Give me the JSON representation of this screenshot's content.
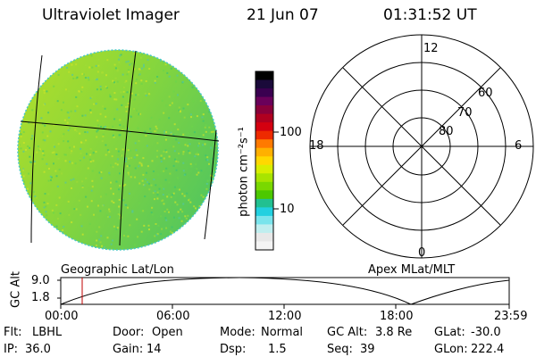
{
  "header": {
    "title": "Ultraviolet Imager",
    "date": "21 Jun 07",
    "time": "01:31:52 UT"
  },
  "colorbar": {
    "label": "photon cm⁻²s⁻¹",
    "ticks": [
      "100",
      "10"
    ],
    "colors": [
      "#000000",
      "#1a0a3a",
      "#3a0050",
      "#6a005a",
      "#8a003a",
      "#b00020",
      "#d40010",
      "#ee2a00",
      "#ff7a00",
      "#ffb000",
      "#ffd800",
      "#d8ee00",
      "#a8e400",
      "#7ad800",
      "#4cc800",
      "#22c090",
      "#22d0e0",
      "#7ae4ec",
      "#c0eeef",
      "#e8e8e8",
      "#f4f4f4"
    ]
  },
  "polar_plot": {
    "mlt_labels": {
      "top": "12",
      "left": "18",
      "right": "6",
      "bottom": "0"
    },
    "lat_labels": [
      "60",
      "70",
      "80"
    ]
  },
  "timeline": {
    "left_label": "Geographic Lat/Lon",
    "right_label": "Apex MLat/MLT",
    "axis_label": "GC Alt",
    "y_ticks": [
      "9.0",
      "1.8"
    ],
    "x_ticks": [
      "00:00",
      "06:00",
      "12:00",
      "18:00",
      "23:59"
    ]
  },
  "info": {
    "row1": [
      {
        "label": "Flt:",
        "value": "LBHL"
      },
      {
        "label": "Door:",
        "value": "Open"
      },
      {
        "label": "Mode:",
        "value": "Normal"
      },
      {
        "label": "GC Alt:",
        "value": "3.8 Re"
      },
      {
        "label": "GLat:",
        "value": "-30.0"
      }
    ],
    "row2": [
      {
        "label": "IP:",
        "value": "36.0"
      },
      {
        "label": "Gain:",
        "value": "14"
      },
      {
        "label": "Dsp:",
        "value": "1.5"
      },
      {
        "label": "Seq:",
        "value": "39"
      },
      {
        "label": "GLon:",
        "value": "222.4"
      }
    ]
  }
}
